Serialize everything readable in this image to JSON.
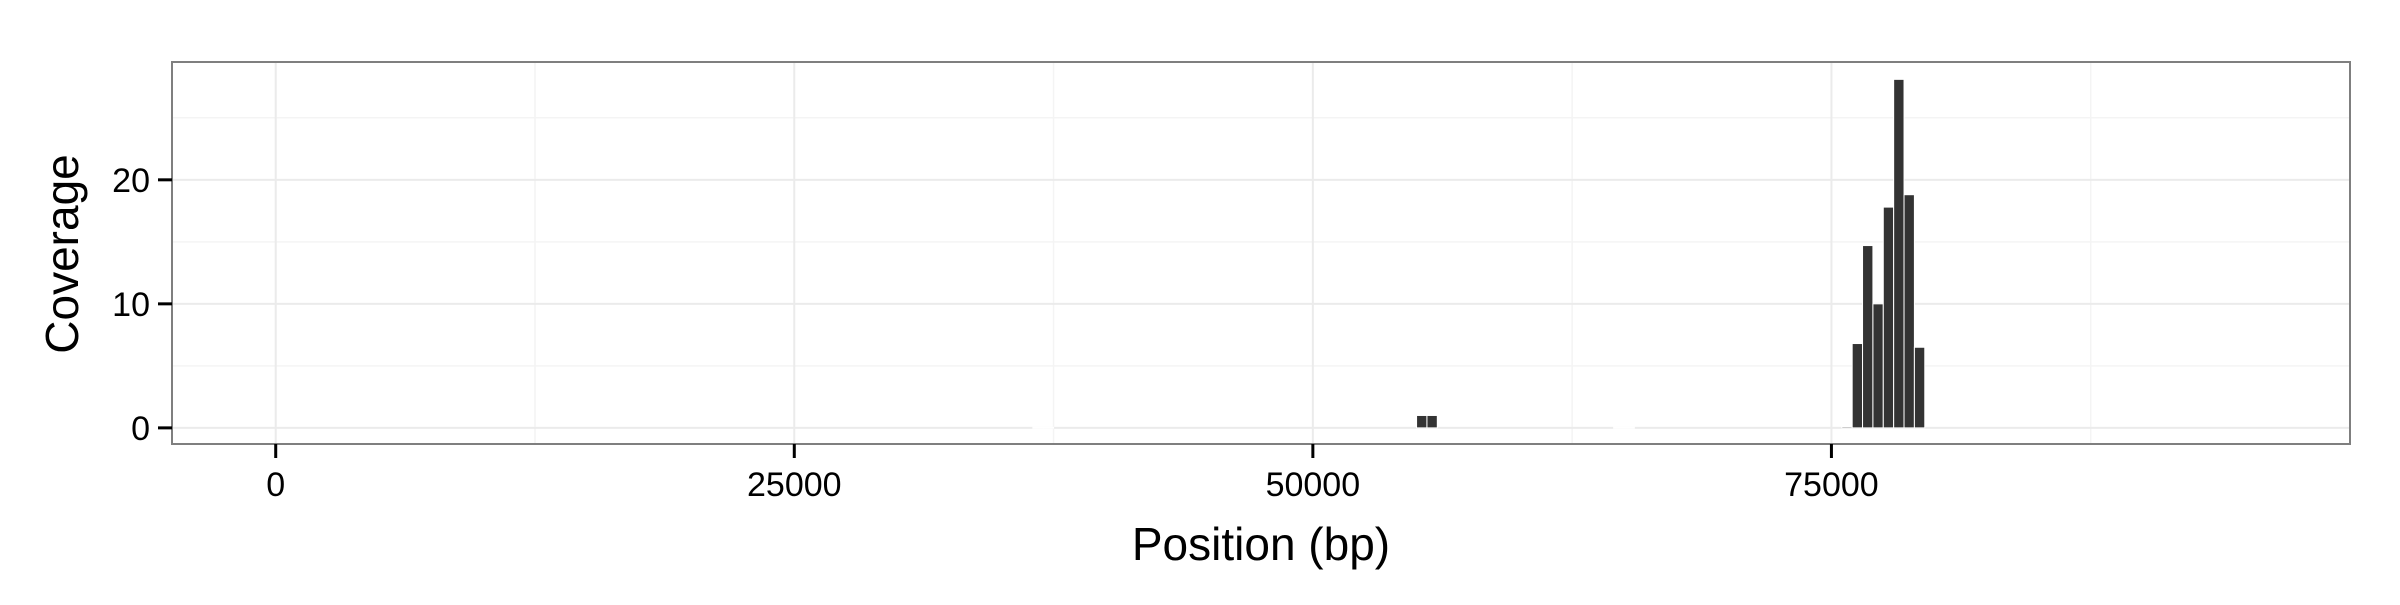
{
  "chart_data": {
    "type": "bar",
    "title": "",
    "xlabel": "Position (bp)",
    "ylabel": "Coverage",
    "xlim": [
      -5000,
      100000
    ],
    "ylim": [
      -1.3,
      29.5
    ],
    "x_ticks": [
      0,
      25000,
      50000,
      75000
    ],
    "x_tick_labels": [
      "0",
      "25000",
      "50000",
      "75000"
    ],
    "y_ticks": [
      0,
      10,
      20
    ],
    "y_tick_labels": [
      "0",
      "10",
      "20"
    ],
    "grid": true,
    "bar_width": 500,
    "bar_color": "#333333",
    "panel_border_color": "#7f7f7f",
    "grid_color": "#ebebeb",
    "x": [
      36750,
      37250,
      55250,
      55750,
      64750,
      65250,
      75750,
      76250,
      76750,
      77250,
      77750,
      78250,
      78750,
      79250
    ],
    "values": [
      0.05,
      0.05,
      1.0,
      1.0,
      0.05,
      0.05,
      0.1,
      6.8,
      14.7,
      10.0,
      17.8,
      28.1,
      18.8,
      6.5
    ]
  }
}
